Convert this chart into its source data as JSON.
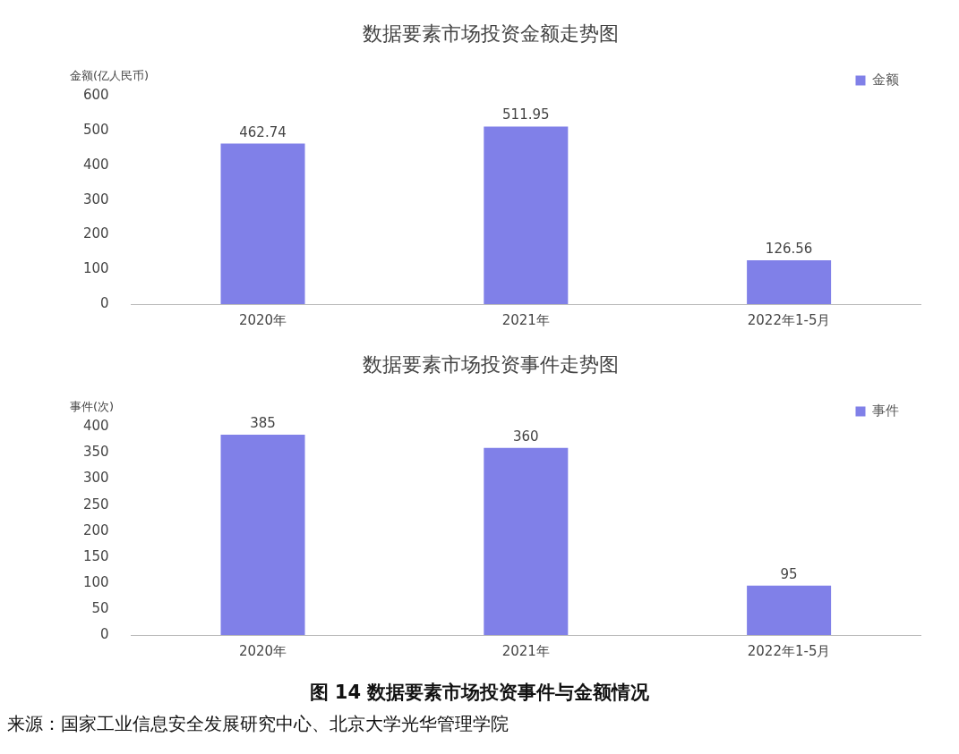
{
  "chart_data": [
    {
      "type": "bar",
      "title": "数据要素市场投资金额走势图",
      "ylabel": "金额(亿人民币)",
      "categories": [
        "2020年",
        "2021年",
        "2022年1-5月"
      ],
      "series": [
        {
          "name": "金额",
          "color": "#8080e8",
          "values": [
            462.74,
            511.95,
            126.56
          ]
        }
      ],
      "ylim": [
        0,
        600
      ],
      "yticks": [
        0,
        100,
        200,
        300,
        400,
        500,
        600
      ],
      "data_labels": true,
      "legend": "top right"
    },
    {
      "type": "bar",
      "title": "数据要素市场投资事件走势图",
      "ylabel": "事件(次)",
      "categories": [
        "2020年",
        "2021年",
        "2022年1-5月"
      ],
      "series": [
        {
          "name": "事件",
          "color": "#8080e8",
          "values": [
            385,
            360,
            95
          ]
        }
      ],
      "ylim": [
        0,
        400
      ],
      "yticks": [
        0,
        50,
        100,
        150,
        200,
        250,
        300,
        350,
        400
      ],
      "data_labels": true,
      "legend": "top right",
      "annotations": [
        "图 14 数据要素市场投资事件与金额情况",
        "来源：国家工业信息安全发展研究中心、北京大学光华管理学院"
      ]
    }
  ]
}
